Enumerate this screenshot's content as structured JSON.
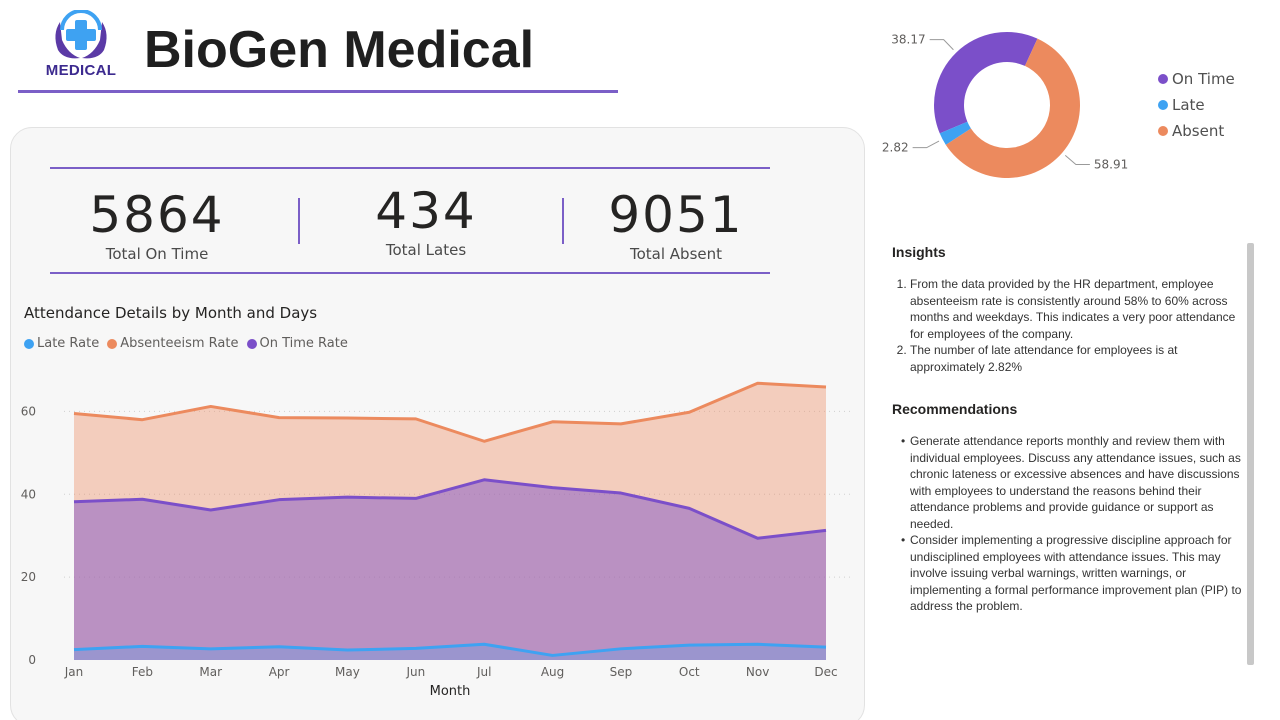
{
  "brand": {
    "title": "BioGen Medical",
    "logo_text": "MEDICAL"
  },
  "colors": {
    "on_time": "#7b4fc9",
    "late": "#3ea2f2",
    "absent": "#ec8a5e",
    "accent": "#7b5fc7"
  },
  "kpis": [
    {
      "value": "5864",
      "label": "Total On Time"
    },
    {
      "value": "434",
      "label": "Total Lates"
    },
    {
      "value": "9051",
      "label": "Total Absent"
    }
  ],
  "line_chart": {
    "title": "Attendance Details by Month and Days",
    "legend": [
      "Late Rate",
      "Absenteeism Rate",
      "On Time Rate"
    ]
  },
  "donut": {
    "legend": [
      "On Time",
      "Late",
      "Absent"
    ],
    "labels": [
      "38.17",
      "2.82",
      "58.91"
    ]
  },
  "chart_data": [
    {
      "type": "area",
      "title": "Attendance Details by Month and Days",
      "xlabel": "Month",
      "ylabel": "",
      "categories": [
        "Jan",
        "Feb",
        "Mar",
        "Apr",
        "May",
        "Jun",
        "Jul",
        "Aug",
        "Sep",
        "Oct",
        "Nov",
        "Dec"
      ],
      "ylim": [
        0,
        70
      ],
      "yticks": [
        0,
        20,
        40,
        60
      ],
      "grid": true,
      "legend_position": "top-left",
      "series": [
        {
          "name": "Late Rate",
          "values": [
            2.5,
            3.3,
            2.7,
            3.2,
            2.4,
            2.8,
            3.8,
            1.1,
            2.7,
            3.6,
            3.8,
            3.1
          ]
        },
        {
          "name": "Absenteeism Rate",
          "values": [
            59.5,
            58.0,
            61.2,
            58.5,
            58.4,
            58.2,
            52.8,
            57.5,
            57.0,
            59.8,
            66.8,
            65.9
          ]
        },
        {
          "name": "On Time Rate",
          "values": [
            38.2,
            38.8,
            36.2,
            38.7,
            39.3,
            39.0,
            43.5,
            41.6,
            40.3,
            36.6,
            29.4,
            31.3
          ]
        }
      ]
    },
    {
      "type": "pie",
      "donut": true,
      "legend_position": "right",
      "categories": [
        "On Time",
        "Late",
        "Absent"
      ],
      "values": [
        38.17,
        2.82,
        58.91
      ]
    }
  ],
  "insights": {
    "title": "Insights",
    "items": [
      "From the data provided by the HR department, employee absenteeism rate is consistently around 58% to 60% across months and weekdays. This indicates a very poor attendance for employees of the company.",
      "The number of late attendance for employees is at approximately 2.82%"
    ]
  },
  "recommendations": {
    "title": "Recommendations",
    "items": [
      "Generate attendance reports monthly and review them with individual employees. Discuss any attendance issues, such as chronic lateness or excessive absences and have discussions with employees to understand the reasons behind their attendance problems and provide guidance or support as needed.",
      "Consider implementing a progressive discipline approach for undisciplined employees with attendance issues. This may involve issuing verbal warnings, written warnings, or implementing a formal performance improvement plan (PIP) to address the problem."
    ]
  }
}
